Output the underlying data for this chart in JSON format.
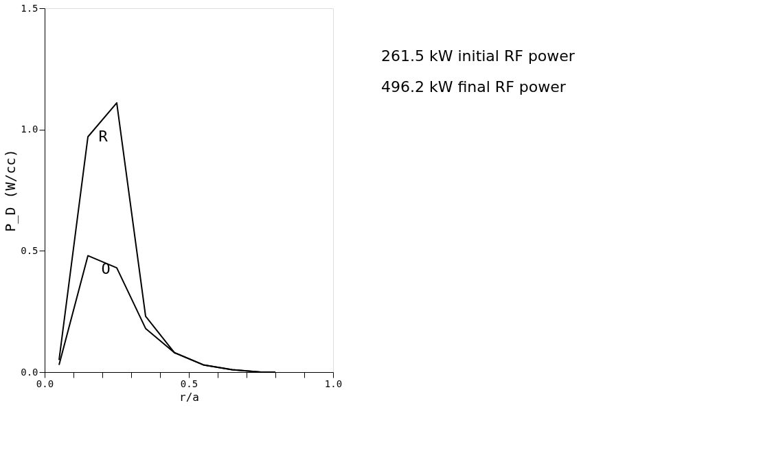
{
  "chart_data": {
    "type": "line",
    "xlabel": "r/a",
    "ylabel": "P_D (W/cc)",
    "x": [
      0.05,
      0.15,
      0.25,
      0.35,
      0.45,
      0.55,
      0.65,
      0.75,
      0.8
    ],
    "series": [
      {
        "name": "R",
        "color": "#000000",
        "values": [
          0.05,
          0.97,
          1.11,
          0.23,
          0.08,
          0.03,
          0.01,
          0.0,
          0.0
        ]
      },
      {
        "name": "O",
        "color": "#000000",
        "values": [
          0.03,
          0.48,
          0.43,
          0.18,
          0.08,
          0.03,
          0.01,
          0.0,
          0.0
        ]
      }
    ],
    "xlim": [
      0.0,
      1.0
    ],
    "ylim": [
      0.0,
      1.5
    ],
    "xticks": [
      {
        "value": 0.0,
        "label": "0.0"
      },
      {
        "value": 0.1,
        "label": null
      },
      {
        "value": 0.2,
        "label": null
      },
      {
        "value": 0.3,
        "label": null
      },
      {
        "value": 0.4,
        "label": null
      },
      0.5,
      {
        "value": 0.6,
        "label": null
      },
      {
        "value": 0.7,
        "label": null
      },
      {
        "value": 0.8,
        "label": null
      },
      {
        "value": 0.9,
        "label": null
      },
      {
        "value": 1.0,
        "label": "1.0"
      }
    ],
    "yticks": [
      {
        "value": 0.0,
        "label": "0.0"
      },
      0.5,
      {
        "value": 1.0,
        "label": "1.0"
      },
      1.5
    ],
    "grid": false,
    "marker": "none",
    "line_style": "solid",
    "annotations": [
      "261.5 kW initial RF power",
      "496.2 kW final RF power"
    ]
  }
}
